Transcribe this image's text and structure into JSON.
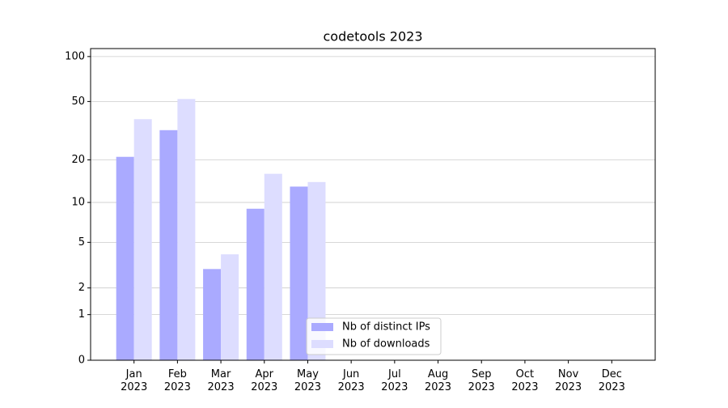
{
  "chart_data": {
    "type": "bar",
    "title": "codetools 2023",
    "categories": [
      [
        "Jan",
        "2023"
      ],
      [
        "Feb",
        "2023"
      ],
      [
        "Mar",
        "2023"
      ],
      [
        "Apr",
        "2023"
      ],
      [
        "May",
        "2023"
      ],
      [
        "Jun",
        "2023"
      ],
      [
        "Jul",
        "2023"
      ],
      [
        "Aug",
        "2023"
      ],
      [
        "Sep",
        "2023"
      ],
      [
        "Oct",
        "2023"
      ],
      [
        "Nov",
        "2023"
      ],
      [
        "Dec",
        "2023"
      ]
    ],
    "series": [
      {
        "name": "Nb of distinct IPs",
        "color": "#aaaaff",
        "values": [
          21,
          32,
          3,
          9,
          13,
          null,
          null,
          null,
          null,
          null,
          null,
          null
        ]
      },
      {
        "name": "Nb of downloads",
        "color": "#ddddff",
        "values": [
          38,
          52,
          4,
          16,
          14,
          null,
          null,
          null,
          null,
          null,
          null,
          null
        ]
      }
    ],
    "yscale": "log1p",
    "ylim": [
      0,
      113
    ],
    "yticks": [
      0,
      1,
      2,
      5,
      10,
      20,
      50,
      100
    ],
    "grid": true,
    "legend": "lower center"
  }
}
